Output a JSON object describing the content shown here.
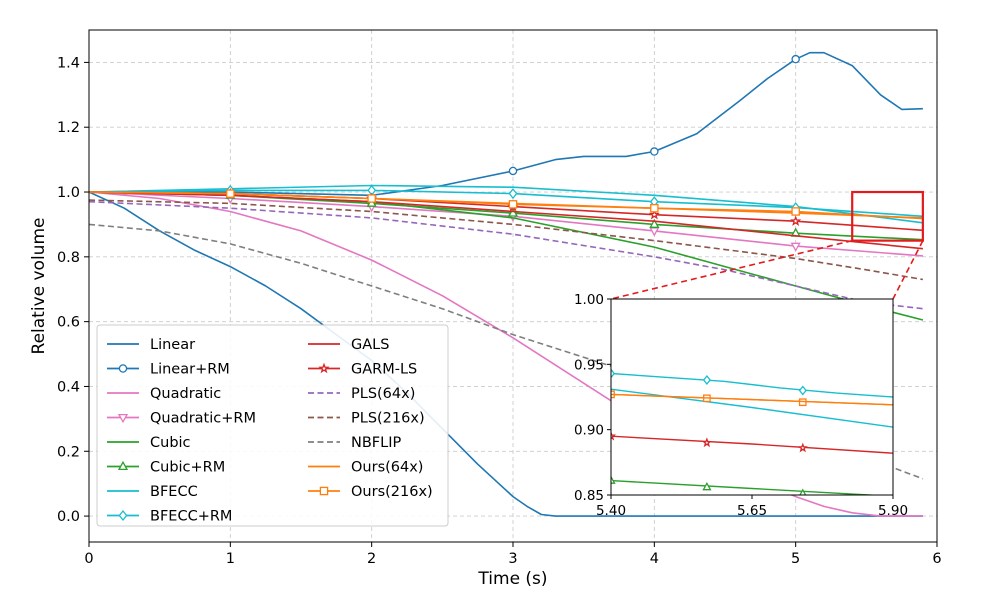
{
  "chart_data": {
    "type": "line",
    "xlabel": "Time (s)",
    "ylabel": "Relative volume",
    "xlim": [
      0,
      6
    ],
    "ylim": [
      -0.08,
      1.5
    ],
    "xticks": [
      0,
      1,
      2,
      3,
      4,
      5,
      6
    ],
    "yticks": [
      0.0,
      0.2,
      0.4,
      0.6,
      0.8,
      1.0,
      1.2,
      1.4
    ],
    "xtick_labels": [
      "0",
      "1",
      "2",
      "3",
      "4",
      "5",
      "6"
    ],
    "ytick_labels": [
      "0.0",
      "0.2",
      "0.4",
      "0.6",
      "0.8",
      "1.0",
      "1.2",
      "1.4"
    ],
    "grid": true,
    "legend_position": "lower-left, two columns",
    "series": [
      {
        "name": "Linear",
        "color": "#1f77b4",
        "dash": "solid",
        "marker": "none",
        "x": [
          0,
          0.25,
          0.5,
          0.75,
          1.0,
          1.25,
          1.5,
          1.75,
          2.0,
          2.25,
          2.5,
          2.75,
          3.0,
          3.1,
          3.2,
          3.3,
          4.0,
          5.0,
          5.9
        ],
        "y": [
          1.0,
          0.95,
          0.88,
          0.82,
          0.77,
          0.71,
          0.64,
          0.56,
          0.48,
          0.38,
          0.27,
          0.16,
          0.06,
          0.03,
          0.005,
          0.0,
          0.0,
          0.0,
          0.0
        ]
      },
      {
        "name": "Linear+RM",
        "color": "#1f77b4",
        "dash": "solid",
        "marker": "circle",
        "x": [
          0,
          1.0,
          2.0,
          2.5,
          3.0,
          3.3,
          3.5,
          3.8,
          4.0,
          4.3,
          4.6,
          4.8,
          5.0,
          5.1,
          5.2,
          5.4,
          5.6,
          5.75,
          5.9
        ],
        "y": [
          1.0,
          1.0,
          0.99,
          1.02,
          1.065,
          1.1,
          1.11,
          1.11,
          1.125,
          1.18,
          1.28,
          1.35,
          1.41,
          1.43,
          1.43,
          1.39,
          1.3,
          1.255,
          1.257
        ],
        "markers_x": [
          3.0,
          4.0,
          5.0
        ],
        "markers_y": [
          1.065,
          1.125,
          1.41
        ]
      },
      {
        "name": "Quadratic",
        "color": "#e377c2",
        "dash": "solid",
        "marker": "none",
        "x": [
          0,
          0.5,
          1.0,
          1.5,
          2.0,
          2.5,
          3.0,
          3.5,
          4.0,
          4.5,
          5.0,
          5.2,
          5.4,
          5.6,
          5.9
        ],
        "y": [
          1.0,
          0.98,
          0.94,
          0.88,
          0.79,
          0.68,
          0.55,
          0.41,
          0.27,
          0.15,
          0.06,
          0.03,
          0.01,
          0.0,
          0.0
        ]
      },
      {
        "name": "Quadratic+RM",
        "color": "#e377c2",
        "dash": "solid",
        "marker": "triangle_down",
        "x": [
          0,
          1.0,
          2.0,
          3.0,
          4.0,
          5.0,
          5.9
        ],
        "y": [
          1.0,
          0.98,
          0.955,
          0.925,
          0.88,
          0.833,
          0.803
        ],
        "markers_x": [
          1.0,
          2.0,
          3.0,
          4.0,
          5.0
        ],
        "markers_y": [
          0.98,
          0.955,
          0.925,
          0.88,
          0.833
        ]
      },
      {
        "name": "Cubic",
        "color": "#2ca02c",
        "dash": "solid",
        "marker": "none",
        "x": [
          0,
          1.0,
          2.0,
          3.0,
          4.0,
          4.5,
          5.0,
          5.5,
          5.9
        ],
        "y": [
          1.0,
          0.99,
          0.97,
          0.92,
          0.83,
          0.77,
          0.71,
          0.65,
          0.605
        ]
      },
      {
        "name": "Cubic+RM",
        "color": "#2ca02c",
        "dash": "solid",
        "marker": "triangle_up",
        "x": [
          0,
          1.0,
          2.0,
          3.0,
          4.0,
          5.0,
          5.9
        ],
        "y": [
          1.0,
          0.99,
          0.965,
          0.935,
          0.9,
          0.873,
          0.853
        ],
        "markers_x": [
          1.0,
          2.0,
          3.0,
          4.0,
          5.0
        ],
        "markers_y": [
          0.99,
          0.965,
          0.935,
          0.9,
          0.873
        ]
      },
      {
        "name": "BFECC",
        "color": "#17becf",
        "dash": "solid",
        "marker": "none",
        "x": [
          0,
          1.0,
          2.0,
          3.0,
          4.0,
          5.0,
          5.9
        ],
        "y": [
          1.0,
          1.01,
          1.02,
          1.015,
          0.99,
          0.955,
          0.905
        ]
      },
      {
        "name": "BFECC+RM",
        "color": "#17becf",
        "dash": "solid",
        "marker": "diamond",
        "x": [
          0,
          1.0,
          2.0,
          3.0,
          4.0,
          5.0,
          5.9
        ],
        "y": [
          1.0,
          1.005,
          1.005,
          0.995,
          0.97,
          0.952,
          0.925
        ],
        "markers_x": [
          1.0,
          2.0,
          3.0,
          4.0,
          5.0
        ],
        "markers_y": [
          1.005,
          1.005,
          0.995,
          0.97,
          0.952
        ]
      },
      {
        "name": "GALS",
        "color": "#d62728",
        "dash": "solid",
        "marker": "none",
        "x": [
          0,
          1.0,
          2.0,
          3.0,
          4.0,
          5.0,
          5.9
        ],
        "y": [
          1.0,
          0.99,
          0.97,
          0.94,
          0.91,
          0.865,
          0.825
        ]
      },
      {
        "name": "GARM-LS",
        "color": "#d62728",
        "dash": "solid",
        "marker": "star",
        "x": [
          0,
          1.0,
          2.0,
          3.0,
          4.0,
          5.0,
          5.9
        ],
        "y": [
          1.0,
          0.995,
          0.98,
          0.955,
          0.93,
          0.91,
          0.882
        ],
        "markers_x": [
          1.0,
          2.0,
          3.0,
          4.0,
          5.0
        ],
        "markers_y": [
          0.995,
          0.98,
          0.955,
          0.93,
          0.91
        ]
      },
      {
        "name": "PLS(64x)",
        "color": "#9467bd",
        "dash": "dashed",
        "marker": "none",
        "x": [
          0,
          1.0,
          2.0,
          3.0,
          4.0,
          4.5,
          5.0,
          5.5,
          5.9
        ],
        "y": [
          0.97,
          0.95,
          0.92,
          0.87,
          0.8,
          0.76,
          0.71,
          0.66,
          0.64
        ]
      },
      {
        "name": "PLS(216x)",
        "color": "#8c564b",
        "dash": "dashed",
        "marker": "none",
        "x": [
          0,
          1.0,
          2.0,
          3.0,
          4.0,
          5.0,
          5.5,
          5.9
        ],
        "y": [
          0.975,
          0.965,
          0.94,
          0.9,
          0.85,
          0.795,
          0.76,
          0.73
        ]
      },
      {
        "name": "NBFLIP",
        "color": "#7f7f7f",
        "dash": "dashed",
        "marker": "none",
        "x": [
          0,
          0.5,
          1.0,
          1.5,
          2.0,
          2.5,
          3.0,
          3.5,
          4.0,
          4.5,
          5.0,
          5.5,
          5.9
        ],
        "y": [
          0.9,
          0.88,
          0.84,
          0.78,
          0.71,
          0.64,
          0.56,
          0.49,
          0.42,
          0.35,
          0.26,
          0.18,
          0.115
        ]
      },
      {
        "name": "Ours(64x)",
        "color": "#ff7f0e",
        "dash": "solid",
        "marker": "none",
        "x": [
          0,
          1.0,
          2.0,
          3.0,
          4.0,
          5.0,
          5.9
        ],
        "y": [
          1.0,
          0.995,
          0.98,
          0.965,
          0.95,
          0.935,
          0.92
        ]
      },
      {
        "name": "Ours(216x)",
        "color": "#ff7f0e",
        "dash": "solid",
        "marker": "square",
        "x": [
          0,
          1.0,
          2.0,
          3.0,
          4.0,
          5.0,
          5.9
        ],
        "y": [
          1.0,
          0.995,
          0.98,
          0.962,
          0.95,
          0.94,
          0.918
        ],
        "markers_x": [
          1.0,
          2.0,
          3.0,
          4.0,
          5.0
        ],
        "markers_y": [
          0.995,
          0.98,
          0.962,
          0.95,
          0.94
        ]
      }
    ],
    "inset": {
      "xlim": [
        5.4,
        5.9
      ],
      "ylim": [
        0.85,
        1.0
      ],
      "xticks": [
        5.4,
        5.65,
        5.9
      ],
      "yticks": [
        0.85,
        0.9,
        0.95,
        1.0
      ],
      "xtick_labels": [
        "5.40",
        "5.65",
        "5.90"
      ],
      "ytick_labels": [
        "0.85",
        "0.90",
        "0.95",
        "1.00"
      ],
      "series": [
        {
          "name": "BFECC+RM",
          "color": "#17becf",
          "marker": "diamond",
          "x": [
            5.4,
            5.5,
            5.6,
            5.7,
            5.8,
            5.9
          ],
          "y": [
            0.943,
            0.94,
            0.937,
            0.932,
            0.928,
            0.925
          ],
          "markers_x": [
            5.4,
            5.57,
            5.74
          ],
          "markers_y": [
            0.943,
            0.938,
            0.93
          ]
        },
        {
          "name": "BFECC",
          "color": "#17becf",
          "marker": "none",
          "x": [
            5.4,
            5.65,
            5.9
          ],
          "y": [
            0.931,
            0.917,
            0.902
          ]
        },
        {
          "name": "Ours(216x)",
          "color": "#ff7f0e",
          "marker": "square",
          "x": [
            5.4,
            5.65,
            5.9
          ],
          "y": [
            0.927,
            0.923,
            0.919
          ],
          "markers_x": [
            5.4,
            5.57,
            5.74
          ],
          "markers_y": [
            0.927,
            0.924,
            0.921
          ]
        },
        {
          "name": "Ours(64x)",
          "color": "#ff7f0e",
          "marker": "none",
          "x": [
            5.4,
            5.65,
            5.9
          ],
          "y": [
            0.927,
            0.923,
            0.919
          ]
        },
        {
          "name": "GARM-LS",
          "color": "#d62728",
          "marker": "star",
          "x": [
            5.4,
            5.65,
            5.9
          ],
          "y": [
            0.895,
            0.889,
            0.882
          ],
          "markers_x": [
            5.4,
            5.57,
            5.74
          ],
          "markers_y": [
            0.895,
            0.89,
            0.886
          ]
        },
        {
          "name": "Cubic+RM",
          "color": "#2ca02c",
          "marker": "triangle_up",
          "x": [
            5.4,
            5.65,
            5.9
          ],
          "y": [
            0.861,
            0.855,
            0.849
          ],
          "markers_x": [
            5.4,
            5.57,
            5.74
          ],
          "markers_y": [
            0.861,
            0.856,
            0.851
          ]
        }
      ]
    },
    "zoom_box": {
      "x": [
        5.4,
        5.9
      ],
      "y": [
        0.85,
        1.0
      ],
      "color": "#e41a1c"
    }
  }
}
